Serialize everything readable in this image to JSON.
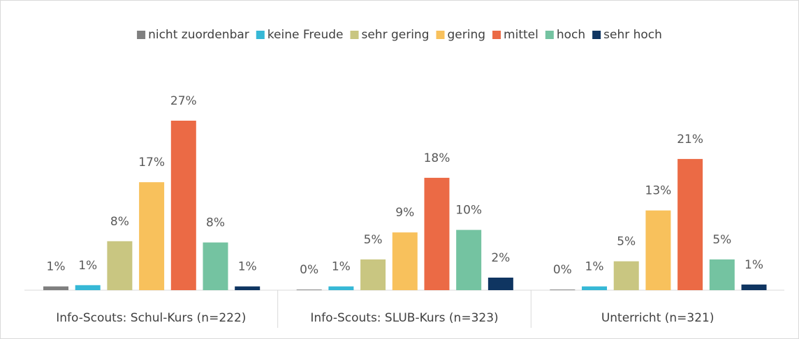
{
  "chart_data": {
    "type": "bar",
    "categories": [
      "Info-Scouts: Schul-Kurs (n=222)",
      "Info-Scouts: SLUB-Kurs (n=323)",
      "Unterricht (n=321)"
    ],
    "series": [
      {
        "name": "nicht zuordenbar",
        "color": "#7f7f7f",
        "values": [
          0.6,
          0.1,
          0.1
        ],
        "value_labels": [
          "1%",
          "0%",
          "0%"
        ]
      },
      {
        "name": "keine Freude",
        "color": "#36b8d6",
        "values": [
          0.8,
          0.6,
          0.6
        ],
        "value_labels": [
          "1%",
          "1%",
          "1%"
        ]
      },
      {
        "name": "sehr gering",
        "color": "#c9c681",
        "values": [
          7.8,
          4.9,
          4.6
        ],
        "value_labels": [
          "8%",
          "5%",
          "5%"
        ]
      },
      {
        "name": "gering",
        "color": "#f8c15c",
        "values": [
          17.2,
          9.2,
          12.7
        ],
        "value_labels": [
          "17%",
          "9%",
          "13%"
        ]
      },
      {
        "name": "mittel",
        "color": "#eb6a45",
        "values": [
          27.0,
          17.9,
          20.9
        ],
        "value_labels": [
          "27%",
          "18%",
          "21%"
        ]
      },
      {
        "name": "hoch",
        "color": "#74c3a1",
        "values": [
          7.6,
          9.6,
          4.9
        ],
        "value_labels": [
          "8%",
          "10%",
          "5%"
        ]
      },
      {
        "name": "sehr hoch",
        "color": "#0f3561",
        "values": [
          0.6,
          2.0,
          0.9
        ],
        "value_labels": [
          "1%",
          "2%",
          "1%"
        ]
      }
    ],
    "ylim": [
      0,
      30
    ],
    "legend": "top"
  }
}
